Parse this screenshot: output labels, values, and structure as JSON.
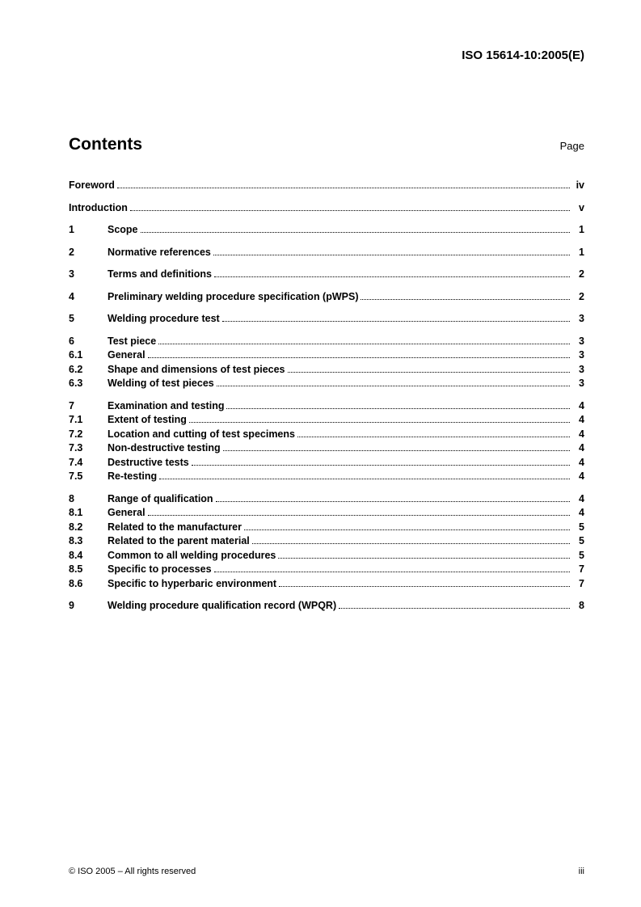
{
  "header": {
    "docId": "ISO 15614-10:2005(E)"
  },
  "contents": {
    "title": "Contents",
    "pageLabel": "Page"
  },
  "toc": [
    [
      {
        "num": "",
        "title": "Foreword",
        "page": "iv"
      }
    ],
    [
      {
        "num": "",
        "title": "Introduction",
        "page": "v"
      }
    ],
    [
      {
        "num": "1",
        "title": "Scope",
        "page": "1"
      }
    ],
    [
      {
        "num": "2",
        "title": "Normative references",
        "page": "1"
      }
    ],
    [
      {
        "num": "3",
        "title": "Terms and definitions",
        "page": "2"
      }
    ],
    [
      {
        "num": "4",
        "title": "Preliminary welding procedure specification (pWPS)",
        "page": "2"
      }
    ],
    [
      {
        "num": "5",
        "title": "Welding procedure test",
        "page": "3"
      }
    ],
    [
      {
        "num": "6",
        "title": "Test piece",
        "page": "3"
      },
      {
        "num": "6.1",
        "title": "General",
        "page": "3"
      },
      {
        "num": "6.2",
        "title": "Shape and dimensions of test pieces",
        "page": "3"
      },
      {
        "num": "6.3",
        "title": "Welding of test pieces",
        "page": "3"
      }
    ],
    [
      {
        "num": "7",
        "title": "Examination and testing",
        "page": "4"
      },
      {
        "num": "7.1",
        "title": "Extent of testing",
        "page": "4"
      },
      {
        "num": "7.2",
        "title": "Location and cutting of test specimens",
        "page": "4"
      },
      {
        "num": "7.3",
        "title": "Non-destructive testing",
        "page": "4"
      },
      {
        "num": "7.4",
        "title": "Destructive tests",
        "page": "4"
      },
      {
        "num": "7.5",
        "title": "Re-testing",
        "page": "4"
      }
    ],
    [
      {
        "num": "8",
        "title": "Range of qualification",
        "page": "4"
      },
      {
        "num": "8.1",
        "title": "General",
        "page": "4"
      },
      {
        "num": "8.2",
        "title": "Related to the manufacturer",
        "page": "5"
      },
      {
        "num": "8.3",
        "title": "Related to the parent material",
        "page": "5"
      },
      {
        "num": "8.4",
        "title": "Common to all welding procedures",
        "page": "5"
      },
      {
        "num": "8.5",
        "title": "Specific to processes",
        "page": "7"
      },
      {
        "num": "8.6",
        "title": "Specific to hyperbaric environment",
        "page": "7"
      }
    ],
    [
      {
        "num": "9",
        "title": "Welding procedure qualification record (WPQR)",
        "page": "8"
      }
    ]
  ],
  "footer": {
    "copyright": "© ISO 2005 – All rights reserved",
    "pageNum": "iii"
  }
}
